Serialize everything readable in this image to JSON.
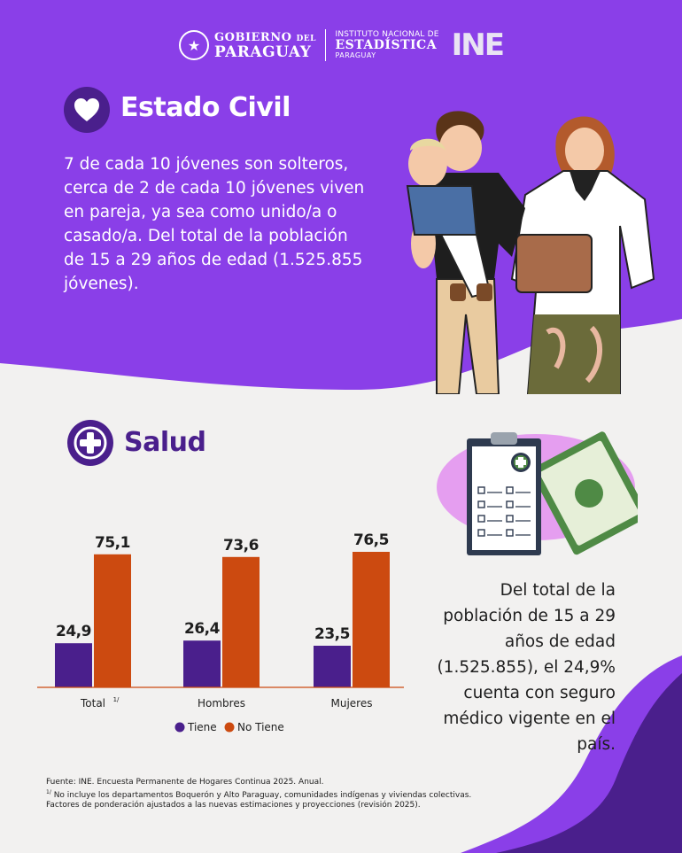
{
  "header": {
    "gob_line1": "GOBIERNO",
    "gob_line1_small": "DEL",
    "gob_line2": "PARAGUAY",
    "ine_line1": "INSTITUTO NACIONAL DE",
    "ine_line2": "ESTADÍSTICA",
    "ine_line3": "PARAGUAY",
    "ine_logo": "INE"
  },
  "estado_civil": {
    "title": "Estado Civil",
    "text": "7 de cada 10 jóvenes son solteros, cerca de 2 de cada 10 jóvenes viven en pareja, ya sea como unido/a o casado/a. Del total de la población de 15 a 29 años de edad (1.525.855 jóvenes)."
  },
  "salud": {
    "title": "Salud",
    "text": "Del total de la población de 15 a 29 años de edad (1.525.855), el 24,9% cuenta con seguro médico vigente en el país."
  },
  "chart_data": {
    "type": "bar",
    "categories": [
      "Total",
      "Hombres",
      "Mujeres"
    ],
    "category_superscripts": [
      "1/",
      "",
      ""
    ],
    "series": [
      {
        "name": "Tiene",
        "values": [
          24.9,
          26.4,
          23.5
        ],
        "labels": [
          "24,9",
          "26,4",
          "23,5"
        ],
        "color": "#4a1f8c"
      },
      {
        "name": "No Tiene",
        "values": [
          75.1,
          73.6,
          76.5
        ],
        "labels": [
          "75,1",
          "73,6",
          "76,5"
        ],
        "color": "#cc4a10"
      }
    ],
    "ylim": [
      0,
      100
    ],
    "legend_position": "bottom",
    "grid": false
  },
  "footer": {
    "source": "Fuente: INE. Encuesta Permanente de Hogares Continua 2025. Anual.",
    "note_mark": "1/",
    "note": " No incluye los departamentos Boquerón y Alto Paraguay, comunidades indígenas y viviendas colectivas.",
    "weights": "Factores de ponderación ajustados a las nuevas estimaciones y proyecciones (revisión 2025)."
  },
  "colors": {
    "purple_bg": "#8a3fe8",
    "purple_dark": "#4a1f8c",
    "orange": "#cc4a10",
    "paper": "#f2f1f0"
  }
}
